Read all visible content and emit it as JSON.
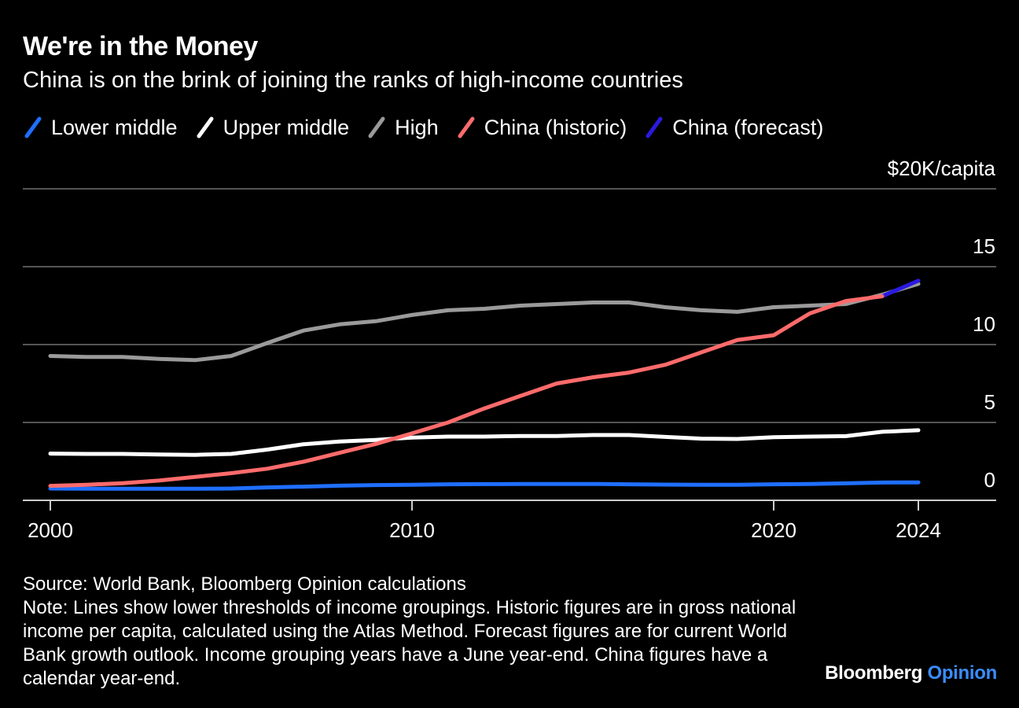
{
  "title": "We're in the Money",
  "subtitle": "China is on the brink of joining the ranks of high-income countries",
  "source": "Source: World Bank, Bloomberg Opinion calculations",
  "note": "Note: Lines show lower thresholds of income groupings. Historic figures are in gross national income per capita, calculated using the Atlas Method. Forecast figures are for current World Bank growth outlook. Income grouping years have a June year-end. China figures have a calendar year-end.",
  "brand": {
    "name": "Bloomberg",
    "suffix": "Opinion"
  },
  "colors": {
    "background": "#000000",
    "gridline": "#555555",
    "lower_middle": "#1f6fff",
    "upper_middle": "#ffffff",
    "high": "#9a9a9a",
    "china_historic": "#ff6b6b",
    "china_forecast": "#2a1ae0"
  },
  "legend": [
    {
      "label": "Lower middle",
      "color": "#1f6fff"
    },
    {
      "label": "Upper middle",
      "color": "#ffffff"
    },
    {
      "label": "High",
      "color": "#9a9a9a"
    },
    {
      "label": "China (historic)",
      "color": "#ff6b6b"
    },
    {
      "label": "China (forecast)",
      "color": "#2a1ae0"
    }
  ],
  "chart_data": {
    "type": "line",
    "title": "We're in the Money",
    "subtitle": "China is on the brink of joining the ranks of high-income countries",
    "ylabel": "$20K/capita",
    "xlim": [
      2000,
      2024
    ],
    "ylim": [
      0,
      20
    ],
    "y_ticks": [
      0,
      5,
      10,
      15,
      20
    ],
    "y_tick_labels": [
      "0",
      "5",
      "10",
      "15",
      "$20K/capita"
    ],
    "x_ticks": [
      2000,
      2010,
      2020,
      2024
    ],
    "x_tick_labels": [
      "2000",
      "2010",
      "2020",
      "2024"
    ],
    "grid": true,
    "legend_position": "top",
    "series": [
      {
        "name": "Lower middle",
        "color": "#1f6fff",
        "x": [
          2000,
          2001,
          2002,
          2003,
          2004,
          2005,
          2006,
          2007,
          2008,
          2009,
          2010,
          2011,
          2012,
          2013,
          2014,
          2015,
          2016,
          2017,
          2018,
          2019,
          2020,
          2021,
          2022,
          2023,
          2024
        ],
        "y": [
          0.76,
          0.74,
          0.74,
          0.74,
          0.74,
          0.76,
          0.83,
          0.88,
          0.94,
          0.98,
          1.0,
          1.03,
          1.04,
          1.05,
          1.05,
          1.05,
          1.03,
          1.01,
          1.0,
          1.0,
          1.03,
          1.05,
          1.09,
          1.14,
          1.15
        ]
      },
      {
        "name": "Upper middle",
        "color": "#ffffff",
        "x": [
          2000,
          2001,
          2002,
          2003,
          2004,
          2005,
          2006,
          2007,
          2008,
          2009,
          2010,
          2011,
          2012,
          2013,
          2014,
          2015,
          2016,
          2017,
          2018,
          2019,
          2020,
          2021,
          2022,
          2023,
          2024
        ],
        "y": [
          3.0,
          2.98,
          2.98,
          2.94,
          2.92,
          2.98,
          3.26,
          3.6,
          3.78,
          3.88,
          4.03,
          4.09,
          4.09,
          4.13,
          4.13,
          4.19,
          4.19,
          4.07,
          3.96,
          3.94,
          4.05,
          4.09,
          4.12,
          4.4,
          4.5
        ]
      },
      {
        "name": "High",
        "color": "#9a9a9a",
        "x": [
          2000,
          2001,
          2002,
          2003,
          2004,
          2005,
          2006,
          2007,
          2008,
          2009,
          2010,
          2011,
          2012,
          2013,
          2014,
          2015,
          2016,
          2017,
          2018,
          2019,
          2020,
          2021,
          2022,
          2023,
          2024
        ],
        "y": [
          9.27,
          9.2,
          9.2,
          9.08,
          9.0,
          9.27,
          10.1,
          10.9,
          11.3,
          11.5,
          11.9,
          12.2,
          12.3,
          12.5,
          12.6,
          12.7,
          12.7,
          12.4,
          12.2,
          12.1,
          12.4,
          12.5,
          12.6,
          13.2,
          13.9
        ]
      },
      {
        "name": "China (historic)",
        "color": "#ff6b6b",
        "x": [
          2000,
          2001,
          2002,
          2003,
          2004,
          2005,
          2006,
          2007,
          2008,
          2009,
          2010,
          2011,
          2012,
          2013,
          2014,
          2015,
          2016,
          2017,
          2018,
          2019,
          2020,
          2021,
          2022,
          2023
        ],
        "y": [
          0.93,
          1.0,
          1.1,
          1.27,
          1.5,
          1.74,
          2.03,
          2.48,
          3.05,
          3.62,
          4.3,
          5.0,
          5.9,
          6.7,
          7.5,
          7.9,
          8.2,
          8.7,
          9.5,
          10.3,
          10.6,
          12.0,
          12.8,
          13.1
        ]
      },
      {
        "name": "China (forecast)",
        "color": "#2a1ae0",
        "x": [
          2023,
          2024
        ],
        "y": [
          13.1,
          14.1
        ]
      }
    ]
  }
}
